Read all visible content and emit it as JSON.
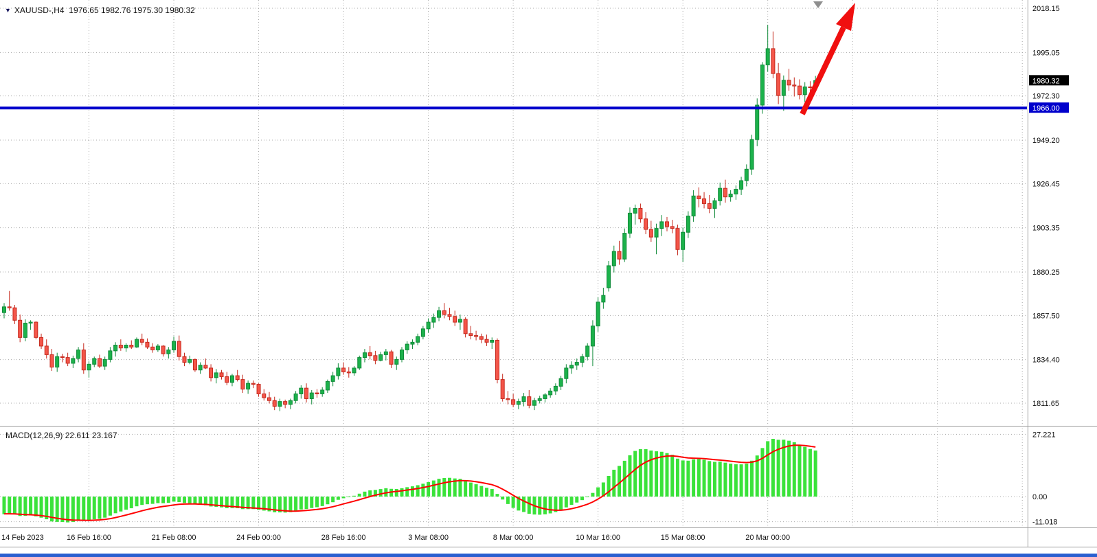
{
  "window": {
    "chart_header": {
      "symbol_period": "XAUUSD-,H4",
      "ohlc": "1976.65 1982.76 1975.30 1980.32"
    },
    "indicator_header": {
      "name": "MACD(12,26,9)",
      "values": "22.611 23.167"
    }
  },
  "price_axis": {
    "ticks": [
      2018.15,
      1995.05,
      1972.3,
      1949.2,
      1926.45,
      1903.35,
      1880.25,
      1857.5,
      1834.4,
      1811.65
    ],
    "current_price_tag": {
      "value": "1980.32",
      "price": 1980.32,
      "bg": "#000000",
      "fg": "#ffffff"
    },
    "level_tag": {
      "value": "1966.00",
      "price": 1966.0,
      "bg": "#0000cc",
      "fg": "#ffffff"
    }
  },
  "indicator_axis": {
    "ticks": [
      {
        "label": "27.221",
        "value": 27.221
      },
      {
        "label": "0.00",
        "value": 0.0
      },
      {
        "label": "-11.018",
        "value": -11.018
      }
    ]
  },
  "time_axis": {
    "labels": [
      {
        "bar": 0,
        "text": "14 Feb 2023"
      },
      {
        "bar": 16,
        "text": "16 Feb 16:00"
      },
      {
        "bar": 32,
        "text": "21 Feb 08:00"
      },
      {
        "bar": 48,
        "text": "24 Feb 00:00"
      },
      {
        "bar": 64,
        "text": "28 Feb 16:00"
      },
      {
        "bar": 80,
        "text": "3 Mar 08:00"
      },
      {
        "bar": 96,
        "text": "8 Mar 00:00"
      },
      {
        "bar": 112,
        "text": "10 Mar 16:00"
      },
      {
        "bar": 128,
        "text": "15 Mar 08:00"
      },
      {
        "bar": 144,
        "text": "20 Mar 00:00"
      }
    ]
  },
  "annotations": {
    "support_line": {
      "price": 1966.0,
      "color": "#0000cc",
      "width": 4
    },
    "trend_arrow": {
      "color": "#f00f0f"
    },
    "scroll_marker_color": "#8e8e8e"
  },
  "colors": {
    "grid": "#aaaaaa",
    "up_fill": "#1cb24b",
    "up_border": "#0f8a38",
    "down_fill": "#f4564a",
    "down_border": "#c5281c",
    "hist": "#3ae23a",
    "signal": "#ff0000",
    "axis_text": "#111111",
    "separator": "#9a9a9a",
    "bottom_bar": "#2a5fd0"
  },
  "chart_data": [
    {
      "type": "candlestick",
      "symbol": "XAUUSD-",
      "timeframe": "H4",
      "title": "XAUUSD-,H4 1976.65 1982.76 1975.30 1980.32",
      "ylim": [
        1799.5,
        2022.5
      ],
      "y_ticks": [
        2018.15,
        1995.05,
        1972.3,
        1949.2,
        1926.45,
        1903.35,
        1880.25,
        1857.5,
        1834.4,
        1811.65
      ],
      "x_tick_labels": [
        "14 Feb 2023",
        "16 Feb 16:00",
        "21 Feb 08:00",
        "24 Feb 00:00",
        "28 Feb 16:00",
        "3 Mar 08:00",
        "8 Mar 00:00",
        "10 Mar 16:00",
        "15 Mar 08:00",
        "20 Mar 00:00"
      ],
      "ohlc": [
        [
          1859.0,
          1864.0,
          1856.0,
          1862.0
        ],
        [
          1862.0,
          1870.3,
          1860.0,
          1861.5
        ],
        [
          1861.5,
          1863.0,
          1853.0,
          1855.0
        ],
        [
          1855.0,
          1858.0,
          1843.5,
          1846.0
        ],
        [
          1846.0,
          1855.5,
          1844.0,
          1853.5
        ],
        [
          1853.5,
          1855.0,
          1850.0,
          1854.0
        ],
        [
          1854.0,
          1854.5,
          1845.0,
          1846.0
        ],
        [
          1846.0,
          1848.0,
          1840.0,
          1841.5
        ],
        [
          1841.5,
          1845.0,
          1835.0,
          1837.0
        ],
        [
          1837.0,
          1840.0,
          1828.5,
          1830.5
        ],
        [
          1830.5,
          1838.0,
          1828.0,
          1836.0
        ],
        [
          1836.0,
          1837.5,
          1833.0,
          1835.5
        ],
        [
          1835.5,
          1838.0,
          1831.0,
          1832.5
        ],
        [
          1832.5,
          1836.5,
          1830.0,
          1835.0
        ],
        [
          1835.0,
          1841.0,
          1833.0,
          1839.5
        ],
        [
          1839.5,
          1843.0,
          1827.0,
          1829.0
        ],
        [
          1829.0,
          1833.5,
          1825.0,
          1832.0
        ],
        [
          1832.0,
          1836.0,
          1830.5,
          1835.0
        ],
        [
          1835.0,
          1837.0,
          1830.0,
          1831.0
        ],
        [
          1831.0,
          1836.0,
          1829.0,
          1834.5
        ],
        [
          1834.5,
          1841.0,
          1833.0,
          1839.0
        ],
        [
          1839.0,
          1843.5,
          1836.0,
          1842.0
        ],
        [
          1842.0,
          1845.0,
          1839.0,
          1840.5
        ],
        [
          1840.5,
          1843.0,
          1838.5,
          1842.0
        ],
        [
          1842.0,
          1844.5,
          1840.0,
          1841.0
        ],
        [
          1841.0,
          1846.0,
          1840.5,
          1845.0
        ],
        [
          1845.0,
          1848.0,
          1842.0,
          1843.5
        ],
        [
          1843.5,
          1845.5,
          1840.0,
          1841.0
        ],
        [
          1841.0,
          1843.0,
          1838.0,
          1839.5
        ],
        [
          1839.5,
          1842.5,
          1838.5,
          1841.5
        ],
        [
          1841.5,
          1842.0,
          1836.0,
          1837.5
        ],
        [
          1837.5,
          1841.0,
          1835.0,
          1839.5
        ],
        [
          1839.5,
          1846.5,
          1838.0,
          1844.0
        ],
        [
          1844.0,
          1847.0,
          1834.0,
          1836.0
        ],
        [
          1836.0,
          1838.0,
          1831.0,
          1833.0
        ],
        [
          1833.0,
          1836.5,
          1832.0,
          1834.5
        ],
        [
          1834.5,
          1835.0,
          1828.0,
          1829.0
        ],
        [
          1829.0,
          1833.0,
          1827.0,
          1831.5
        ],
        [
          1831.5,
          1835.0,
          1829.5,
          1830.0
        ],
        [
          1830.0,
          1832.0,
          1823.0,
          1825.0
        ],
        [
          1825.0,
          1829.5,
          1822.0,
          1827.5
        ],
        [
          1827.5,
          1829.0,
          1824.0,
          1825.5
        ],
        [
          1825.5,
          1828.0,
          1821.0,
          1822.5
        ],
        [
          1822.5,
          1827.0,
          1820.5,
          1826.0
        ],
        [
          1826.0,
          1829.0,
          1823.0,
          1824.0
        ],
        [
          1824.0,
          1826.5,
          1817.0,
          1819.0
        ],
        [
          1819.0,
          1823.5,
          1816.5,
          1822.0
        ],
        [
          1822.0,
          1823.5,
          1819.5,
          1821.5
        ],
        [
          1821.5,
          1822.0,
          1815.0,
          1816.5
        ],
        [
          1816.5,
          1819.0,
          1813.0,
          1814.5
        ],
        [
          1814.5,
          1817.5,
          1811.5,
          1813.0
        ],
        [
          1813.0,
          1815.0,
          1808.0,
          1810.0
        ],
        [
          1810.0,
          1814.0,
          1807.5,
          1812.5
        ],
        [
          1812.5,
          1813.5,
          1809.0,
          1811.0
        ],
        [
          1811.0,
          1814.0,
          1808.5,
          1813.0
        ],
        [
          1813.0,
          1818.0,
          1811.5,
          1816.5
        ],
        [
          1816.5,
          1821.0,
          1814.0,
          1819.5
        ],
        [
          1819.5,
          1822.0,
          1812.0,
          1814.0
        ],
        [
          1814.0,
          1818.5,
          1811.0,
          1817.0
        ],
        [
          1817.0,
          1819.0,
          1814.5,
          1816.5
        ],
        [
          1816.5,
          1820.0,
          1815.0,
          1818.5
        ],
        [
          1818.5,
          1824.0,
          1817.0,
          1823.0
        ],
        [
          1823.0,
          1828.0,
          1820.5,
          1826.0
        ],
        [
          1826.0,
          1832.5,
          1824.0,
          1830.0
        ],
        [
          1830.0,
          1833.0,
          1826.5,
          1828.0
        ],
        [
          1828.0,
          1830.5,
          1825.0,
          1827.5
        ],
        [
          1827.5,
          1831.0,
          1826.0,
          1830.0
        ],
        [
          1830.0,
          1836.5,
          1829.0,
          1835.5
        ],
        [
          1835.5,
          1840.0,
          1833.0,
          1838.0
        ],
        [
          1838.0,
          1841.5,
          1834.5,
          1836.5
        ],
        [
          1836.5,
          1839.0,
          1832.0,
          1834.0
        ],
        [
          1834.0,
          1838.5,
          1833.5,
          1837.0
        ],
        [
          1837.0,
          1840.0,
          1834.0,
          1838.5
        ],
        [
          1838.5,
          1839.5,
          1830.0,
          1832.0
        ],
        [
          1832.0,
          1836.0,
          1829.0,
          1834.5
        ],
        [
          1834.5,
          1841.0,
          1833.0,
          1839.5
        ],
        [
          1839.5,
          1844.0,
          1837.5,
          1842.5
        ],
        [
          1842.5,
          1845.0,
          1840.0,
          1843.5
        ],
        [
          1843.5,
          1848.0,
          1842.0,
          1846.5
        ],
        [
          1846.5,
          1852.0,
          1845.0,
          1850.5
        ],
        [
          1850.5,
          1856.0,
          1848.5,
          1854.0
        ],
        [
          1854.0,
          1858.5,
          1851.0,
          1856.5
        ],
        [
          1856.5,
          1862.0,
          1854.5,
          1860.0
        ],
        [
          1860.0,
          1864.0,
          1856.0,
          1858.0
        ],
        [
          1858.0,
          1861.5,
          1855.0,
          1857.0
        ],
        [
          1857.0,
          1860.0,
          1852.0,
          1854.0
        ],
        [
          1854.0,
          1858.0,
          1850.0,
          1855.5
        ],
        [
          1855.5,
          1856.5,
          1846.0,
          1848.0
        ],
        [
          1848.0,
          1852.0,
          1845.0,
          1847.0
        ],
        [
          1847.0,
          1849.5,
          1844.5,
          1846.5
        ],
        [
          1846.5,
          1848.0,
          1843.0,
          1845.0
        ],
        [
          1845.0,
          1847.5,
          1841.5,
          1843.5
        ],
        [
          1843.5,
          1846.0,
          1840.0,
          1844.5
        ],
        [
          1844.5,
          1845.5,
          1822.0,
          1824.0
        ],
        [
          1824.0,
          1827.0,
          1812.5,
          1814.0
        ],
        [
          1814.0,
          1818.0,
          1811.0,
          1813.5
        ],
        [
          1813.5,
          1816.5,
          1809.5,
          1811.0
        ],
        [
          1811.0,
          1814.0,
          1808.5,
          1812.5
        ],
        [
          1812.5,
          1817.0,
          1810.0,
          1815.0
        ],
        [
          1815.0,
          1818.5,
          1809.0,
          1810.5
        ],
        [
          1810.5,
          1814.5,
          1808.0,
          1813.0
        ],
        [
          1813.0,
          1815.5,
          1811.5,
          1814.0
        ],
        [
          1814.0,
          1817.0,
          1812.0,
          1816.0
        ],
        [
          1816.0,
          1819.5,
          1814.5,
          1818.0
        ],
        [
          1818.0,
          1822.0,
          1816.0,
          1820.5
        ],
        [
          1820.5,
          1826.0,
          1818.5,
          1824.5
        ],
        [
          1824.5,
          1832.0,
          1822.0,
          1830.0
        ],
        [
          1830.0,
          1833.5,
          1827.0,
          1831.5
        ],
        [
          1831.5,
          1835.0,
          1829.0,
          1833.0
        ],
        [
          1833.0,
          1837.5,
          1830.5,
          1836.0
        ],
        [
          1836.0,
          1843.0,
          1834.0,
          1841.5
        ],
        [
          1841.5,
          1855.0,
          1831.0,
          1852.0
        ],
        [
          1852.0,
          1867.0,
          1849.0,
          1864.5
        ],
        [
          1864.5,
          1872.0,
          1861.0,
          1868.0
        ],
        [
          1872.0,
          1886.0,
          1870.0,
          1883.5
        ],
        [
          1883.5,
          1894.0,
          1880.0,
          1891.0
        ],
        [
          1891.0,
          1896.5,
          1884.0,
          1887.0
        ],
        [
          1887.0,
          1903.0,
          1885.5,
          1900.5
        ],
        [
          1900.5,
          1914.0,
          1898.0,
          1911.0
        ],
        [
          1911.0,
          1915.5,
          1905.0,
          1913.5
        ],
        [
          1913.5,
          1916.0,
          1906.0,
          1908.0
        ],
        [
          1908.0,
          1911.5,
          1900.0,
          1902.5
        ],
        [
          1902.5,
          1907.0,
          1896.0,
          1898.5
        ],
        [
          1898.5,
          1905.5,
          1889.5,
          1903.0
        ],
        [
          1903.0,
          1910.0,
          1899.0,
          1906.5
        ],
        [
          1906.5,
          1909.0,
          1901.5,
          1904.0
        ],
        [
          1904.0,
          1907.5,
          1900.5,
          1903.0
        ],
        [
          1903.0,
          1905.0,
          1889.0,
          1892.0
        ],
        [
          1892.0,
          1903.5,
          1885.5,
          1901.0
        ],
        [
          1901.0,
          1912.0,
          1898.0,
          1909.5
        ],
        [
          1909.5,
          1923.0,
          1906.5,
          1920.0
        ],
        [
          1920.0,
          1924.5,
          1914.0,
          1918.5
        ],
        [
          1918.5,
          1922.0,
          1913.5,
          1916.0
        ],
        [
          1916.0,
          1920.5,
          1911.0,
          1913.5
        ],
        [
          1913.5,
          1919.0,
          1908.5,
          1917.5
        ],
        [
          1917.5,
          1927.0,
          1915.0,
          1924.0
        ],
        [
          1924.0,
          1928.5,
          1916.5,
          1919.5
        ],
        [
          1919.5,
          1923.0,
          1917.0,
          1921.0
        ],
        [
          1921.0,
          1925.5,
          1918.0,
          1923.5
        ],
        [
          1923.5,
          1930.0,
          1920.5,
          1928.0
        ],
        [
          1928.0,
          1936.5,
          1925.0,
          1934.0
        ],
        [
          1934.0,
          1952.0,
          1931.0,
          1949.5
        ],
        [
          1949.5,
          1971.0,
          1946.0,
          1967.5
        ],
        [
          1967.5,
          1990.0,
          1963.0,
          1988.5
        ],
        [
          1988.5,
          2009.5,
          1985.0,
          1997.0
        ],
        [
          1997.0,
          2006.0,
          1981.5,
          1984.0
        ],
        [
          1984.0,
          1989.5,
          1968.0,
          1972.5
        ],
        [
          1972.5,
          1983.0,
          1964.5,
          1980.5
        ],
        [
          1980.5,
          1986.5,
          1975.0,
          1978.0
        ],
        [
          1978.0,
          1982.0,
          1972.0,
          1977.5
        ],
        [
          1977.5,
          1981.0,
          1970.5,
          1973.0
        ],
        [
          1973.0,
          1979.5,
          1969.0,
          1977.0
        ],
        [
          1977.0,
          1980.0,
          1972.5,
          1976.65
        ],
        [
          1976.65,
          1982.76,
          1975.3,
          1980.32
        ]
      ]
    },
    {
      "type": "bar+line",
      "name": "MACD",
      "params": [
        12,
        26,
        9
      ],
      "current_macd": 22.611,
      "current_signal": 23.167,
      "seeds": {
        "fast_ema": 1866.0,
        "slow_ema": 1874.0,
        "signal_ema": -7.5
      },
      "ylim": [
        -13.5,
        30.5
      ],
      "y_ticks": [
        27.221,
        0.0,
        -11.018
      ]
    }
  ]
}
